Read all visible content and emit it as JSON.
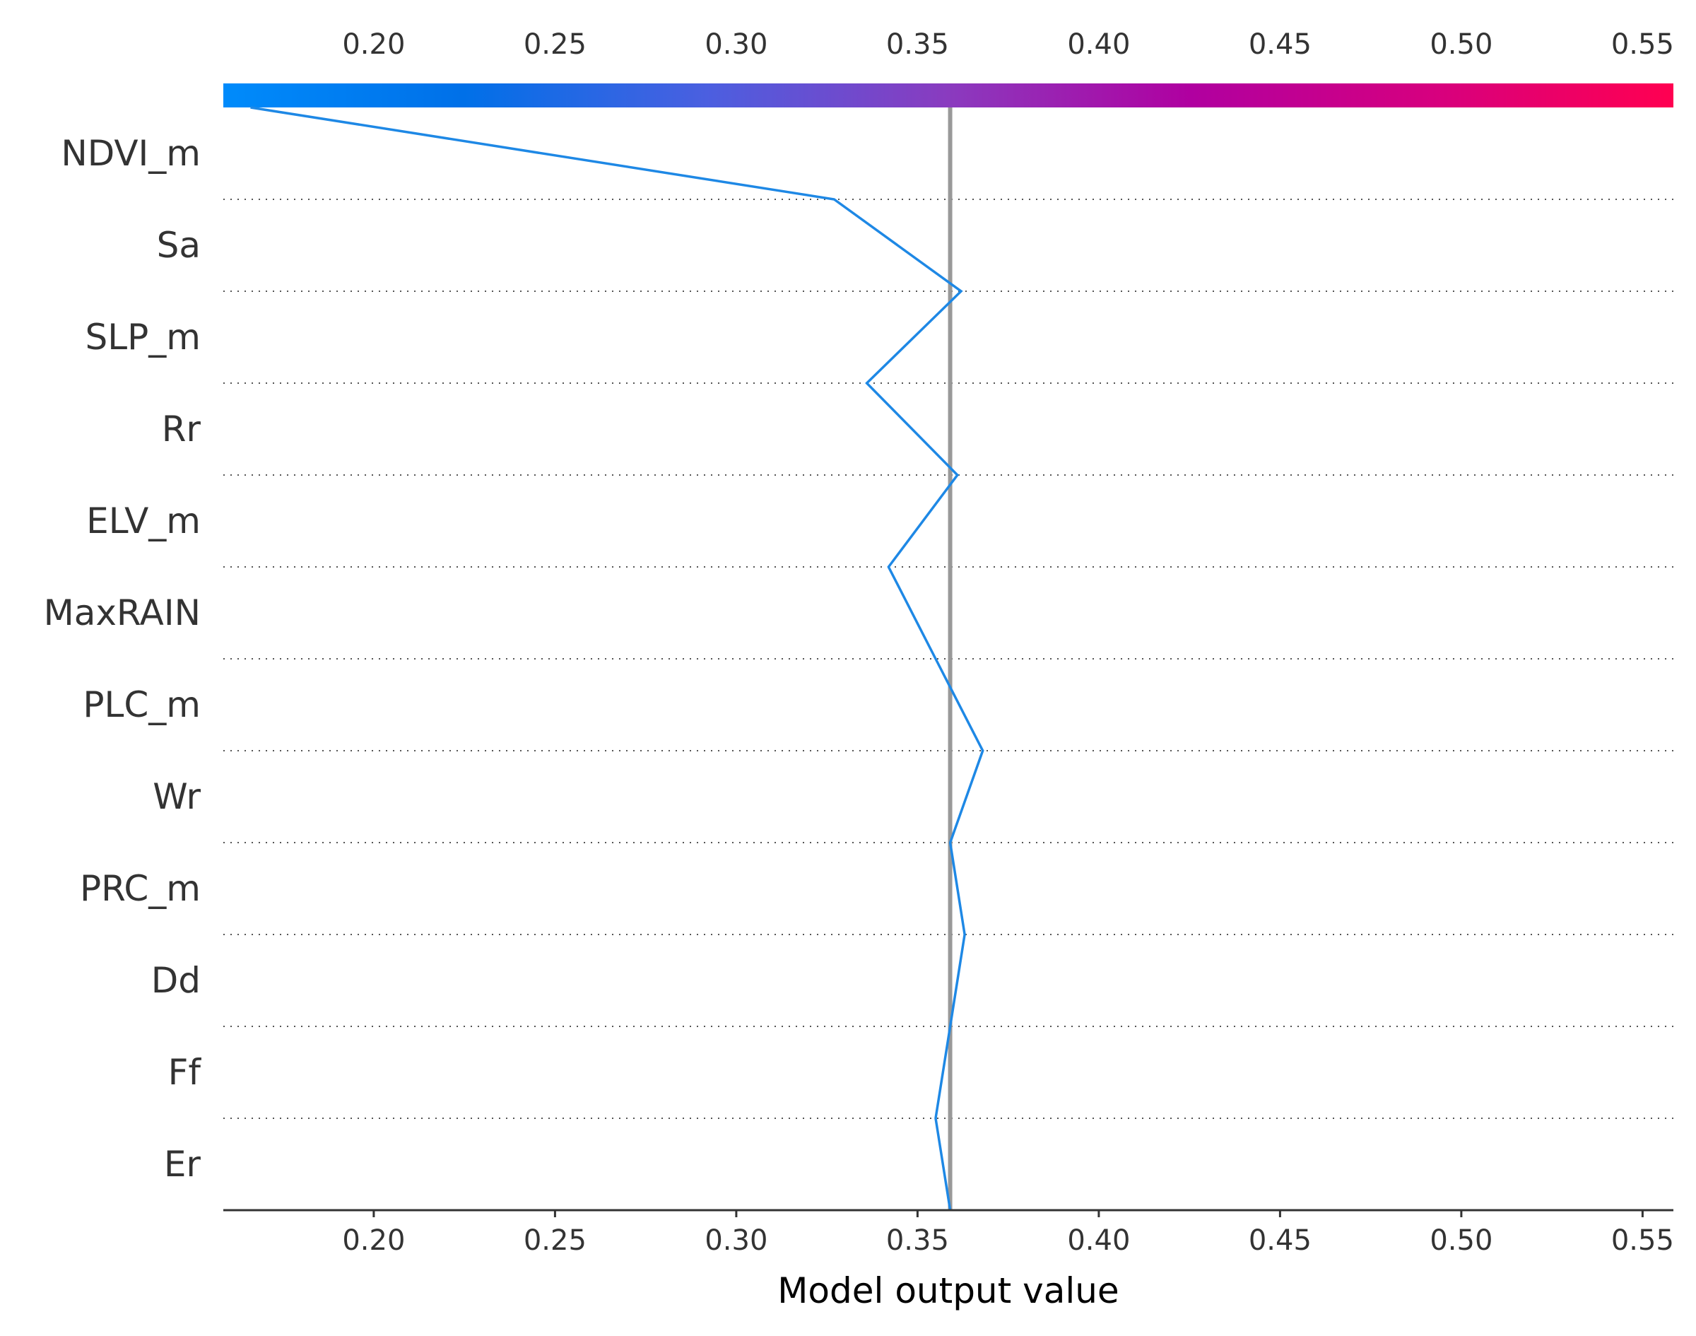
{
  "chart_data": {
    "type": "line",
    "subtype": "shap-decision-plot",
    "title": "",
    "xlabel": "Model output value",
    "ylabel": "",
    "xlim": [
      0.1585,
      0.5585
    ],
    "x_ticks": [
      "0.20",
      "0.25",
      "0.30",
      "0.35",
      "0.40",
      "0.45",
      "0.50",
      "0.55"
    ],
    "x_tick_values": [
      0.2,
      0.25,
      0.3,
      0.35,
      0.4,
      0.45,
      0.5,
      0.55
    ],
    "base_value": 0.359,
    "features": [
      "NDVI_m",
      "Sa",
      "SLP_m",
      "Rr",
      "ELV_m",
      "MaxRAIN",
      "PLC_m",
      "Wr",
      "PRC_m",
      "Dd",
      "Ff",
      "Er"
    ],
    "path_values": [
      0.359,
      0.355,
      0.359,
      0.363,
      0.359,
      0.368,
      0.355,
      0.342,
      0.361,
      0.336,
      0.362,
      0.327,
      0.166
    ],
    "colorbar": {
      "range": [
        0.1585,
        0.5585
      ],
      "colors": [
        "#008bfb",
        "#0070e8",
        "#4b5fe0",
        "#8a3bbf",
        "#b000a0",
        "#d6007f",
        "#ff0051"
      ]
    },
    "line_color": "#1e88e5",
    "base_line_color": "#999999",
    "grid": "dotted horizontal separators"
  }
}
